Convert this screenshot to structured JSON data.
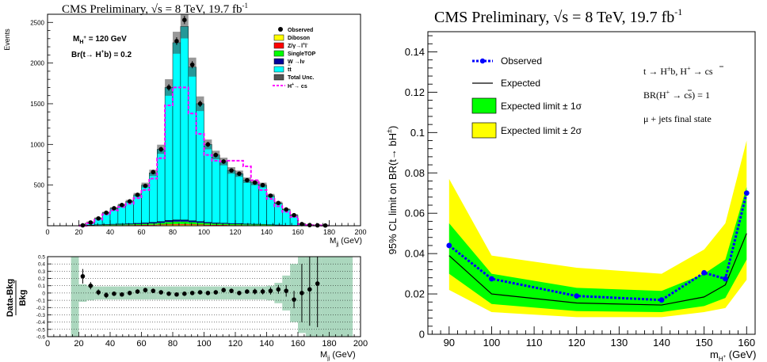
{
  "chart_data": [
    {
      "type": "bar",
      "subtype": "stacked-histogram",
      "title": "CMS Preliminary,   √s = 8 TeV,   19.7 fb",
      "title_sup": "-1",
      "xlabel": "M",
      "xlabel_sub": "jj",
      "xlabel_unit": " (GeV)",
      "ylabel": "Events",
      "xlim": [
        0,
        200
      ],
      "ylim": [
        0,
        2600
      ],
      "xticks": [
        0,
        20,
        40,
        60,
        80,
        100,
        120,
        140,
        160,
        180,
        200
      ],
      "yticks": [
        500,
        1000,
        1500,
        2000,
        2500
      ],
      "annotation_mass": "M",
      "annotation_mass_sub": "H",
      "annotation_mass_sup": "+",
      "annotation_mass_value": " = 120 GeV",
      "annotation_br": "Br(t→ H",
      "annotation_br_sup": "+",
      "annotation_br_value": "b) = 0.2",
      "bin_edges": [
        20,
        25,
        30,
        35,
        40,
        45,
        50,
        55,
        60,
        65,
        70,
        75,
        80,
        85,
        90,
        95,
        100,
        105,
        110,
        115,
        120,
        125,
        130,
        135,
        140,
        145,
        150,
        155,
        160,
        165,
        170,
        175,
        180
      ],
      "series": [
        {
          "name": "Observed",
          "values": [
            5,
            40,
            90,
            160,
            215,
            255,
            300,
            380,
            490,
            660,
            940,
            1700,
            2270,
            2530,
            1980,
            1500,
            1000,
            870,
            790,
            680,
            640,
            560,
            530,
            500,
            370,
            280,
            200,
            130,
            20,
            8,
            5,
            3
          ]
        },
        {
          "name": "Diboson",
          "values": [
            1,
            2,
            2,
            3,
            3,
            3,
            4,
            4,
            5,
            6,
            8,
            10,
            12,
            12,
            10,
            8,
            6,
            5,
            5,
            4,
            4,
            3,
            3,
            3,
            2,
            2,
            1,
            1,
            0,
            0,
            0,
            0
          ]
        },
        {
          "name": "Z/γ→l⁺l⁻",
          "values": [
            1,
            2,
            2,
            3,
            3,
            4,
            4,
            5,
            5,
            6,
            7,
            8,
            9,
            9,
            8,
            7,
            6,
            5,
            5,
            4,
            4,
            3,
            3,
            3,
            2,
            2,
            1,
            1,
            0,
            0,
            0,
            0
          ]
        },
        {
          "name": "SingleTOP",
          "values": [
            1,
            2,
            4,
            6,
            7,
            8,
            9,
            11,
            13,
            16,
            20,
            28,
            30,
            30,
            26,
            22,
            18,
            15,
            13,
            12,
            11,
            10,
            9,
            8,
            6,
            4,
            3,
            2,
            1,
            0,
            0,
            0
          ]
        },
        {
          "name": "W →lν",
          "values": [
            1,
            2,
            4,
            5,
            6,
            7,
            8,
            10,
            12,
            14,
            17,
            20,
            21,
            20,
            18,
            15,
            12,
            10,
            9,
            8,
            7,
            6,
            5,
            4,
            3,
            2,
            1,
            1,
            0,
            0,
            0,
            0
          ]
        },
        {
          "name": "tt̄",
          "values": [
            2,
            32,
            78,
            143,
            196,
            233,
            275,
            350,
            465,
            608,
            888,
            1634,
            2178,
            2379,
            1888,
            1448,
            958,
            835,
            758,
            652,
            614,
            538,
            510,
            482,
            357,
            270,
            194,
            125,
            19,
            8,
            5,
            3
          ]
        },
        {
          "name": "H⁺→ cs̄",
          "values": [
            0,
            30,
            75,
            140,
            190,
            230,
            270,
            340,
            440,
            580,
            830,
            1480,
            1700,
            1700,
            1380,
            1130,
            870,
            800,
            790,
            800,
            800,
            730,
            560,
            440,
            330,
            240,
            170,
            110,
            20,
            8,
            5,
            3
          ]
        }
      ],
      "legend": [
        "Observed",
        "Diboson",
        "Z/γ→l",
        "SingleTOP",
        "W →lν",
        "tt",
        "Total Unc.",
        "H",
        "→ cs"
      ],
      "legend_parts": {
        "z_sup1": "+",
        "z_mid": "l",
        "z_sup2": "-",
        "tt_bar": "−",
        "h_sup": "+"
      },
      "colors": {
        "diboson": "#ffff00",
        "zjets": "#ff0000",
        "singletop": "#00ff00",
        "wjets": "#000099",
        "ttbar": "#00ffff",
        "signal": "#ff00ff",
        "unc": "#555555"
      }
    },
    {
      "type": "scatter",
      "subtype": "residual",
      "ylabel_num": "Data-Bkg",
      "ylabel_den": "Bkg",
      "xlabel": "M",
      "xlabel_sub": "jj",
      "xlabel_unit": " (GeV)",
      "xlim": [
        0,
        200
      ],
      "ylim": [
        -0.6,
        0.5
      ],
      "xticks": [
        0,
        20,
        40,
        60,
        80,
        100,
        120,
        140,
        160,
        180,
        200
      ],
      "yticks": [
        -0.6,
        -0.5,
        -0.4,
        -0.3,
        -0.2,
        -0.1,
        0,
        0.1,
        0.2,
        0.3,
        0.4,
        0.5
      ],
      "x": [
        22.5,
        27.5,
        32.5,
        37.5,
        42.5,
        47.5,
        52.5,
        57.5,
        62.5,
        67.5,
        72.5,
        77.5,
        82.5,
        87.5,
        92.5,
        97.5,
        102.5,
        107.5,
        112.5,
        117.5,
        122.5,
        127.5,
        132.5,
        137.5,
        142.5,
        147.5,
        152.5,
        157.5,
        162.5,
        167.5,
        172.5
      ],
      "y": [
        0.23,
        0.1,
        0.01,
        -0.03,
        -0.01,
        -0.02,
        0.0,
        0.02,
        0.04,
        0.03,
        0.01,
        -0.01,
        -0.02,
        -0.01,
        0.0,
        0.01,
        0.0,
        0.01,
        0.04,
        0.03,
        0.0,
        0.02,
        0.02,
        0.02,
        0.03,
        0.05,
        0.03,
        -0.09,
        0.0,
        0.05,
        0.13
      ],
      "yerr": [
        0.1,
        0.05,
        0.04,
        0.04,
        0.03,
        0.03,
        0.03,
        0.03,
        0.03,
        0.03,
        0.03,
        0.02,
        0.02,
        0.02,
        0.02,
        0.02,
        0.03,
        0.03,
        0.03,
        0.03,
        0.03,
        0.03,
        0.04,
        0.04,
        0.05,
        0.06,
        0.08,
        0.12,
        0.4,
        0.5,
        0.6
      ],
      "band": [
        0.6,
        0.12,
        0.1,
        0.09,
        0.09,
        0.09,
        0.09,
        0.09,
        0.09,
        0.09,
        0.09,
        0.09,
        0.09,
        0.09,
        0.09,
        0.09,
        0.09,
        0.09,
        0.09,
        0.09,
        0.09,
        0.09,
        0.09,
        0.09,
        0.09,
        0.1,
        0.14,
        0.24,
        0.4,
        0.55,
        0.6,
        0.6,
        0.6,
        0.6
      ],
      "band_edges": [
        15,
        20,
        25,
        30,
        35,
        40,
        45,
        50,
        55,
        60,
        65,
        70,
        75,
        80,
        85,
        90,
        95,
        100,
        105,
        110,
        115,
        120,
        125,
        130,
        135,
        140,
        145,
        150,
        155,
        160,
        165,
        170,
        175,
        180,
        195
      ]
    },
    {
      "type": "line",
      "title": "CMS Preliminary, √s = 8 TeV,  19.7 fb",
      "title_sup": "-1",
      "ylabel": "95% CL limit on BR(t→ bH",
      "ylabel_sup": "±",
      "ylabel_end": ")",
      "xlabel": "m",
      "xlabel_sub": "H",
      "xlabel_subsup": "+",
      "xlabel_unit": " (GeV)",
      "xlim": [
        85,
        162
      ],
      "ylim": [
        0,
        0.15
      ],
      "xticks": [
        90,
        100,
        110,
        120,
        130,
        140,
        150,
        160
      ],
      "yticks": [
        0,
        0.02,
        0.04,
        0.06,
        0.08,
        0.1,
        0.12,
        0.14
      ],
      "ytick_labels": [
        "0",
        "0.02",
        "0.04",
        "0.06",
        "0.08",
        "0.1",
        "0.12",
        "0.14"
      ],
      "x": [
        90,
        100,
        120,
        140,
        150,
        155,
        160
      ],
      "series": [
        {
          "name": "Observed",
          "values": [
            0.044,
            0.0275,
            0.019,
            0.017,
            0.0305,
            0.0275,
            0.07
          ]
        },
        {
          "name": "Expected",
          "values": [
            0.039,
            0.02,
            0.0155,
            0.0145,
            0.0185,
            0.0245,
            0.05
          ]
        },
        {
          "name": "Expected limit ± 1σ",
          "lower": [
            0.03,
            0.015,
            0.0115,
            0.011,
            0.014,
            0.018,
            0.037
          ],
          "upper": [
            0.055,
            0.03,
            0.023,
            0.0215,
            0.03,
            0.037,
            0.073
          ]
        },
        {
          "name": "Expected limit ± 2σ",
          "lower": [
            0.022,
            0.011,
            0.0085,
            0.0085,
            0.011,
            0.013,
            0.027
          ],
          "upper": [
            0.077,
            0.039,
            0.033,
            0.03,
            0.042,
            0.055,
            0.096
          ]
        }
      ],
      "legend": [
        "Observed",
        "Expected",
        "Expected limit ± 1σ",
        "Expected limit ± 2σ"
      ],
      "annotation_decay": "t → H",
      "annotation_decay_sup": "±",
      "annotation_decay_mid": "b, H",
      "annotation_decay_sup2": "+",
      "annotation_decay_end": " → cs",
      "annotation_br": "BR(H",
      "annotation_br_sup": "+",
      "annotation_br_end": " → cs) = 1",
      "annotation_state": "μ + jets final state",
      "colors": {
        "observed": "#0000ff",
        "expected": "#000000",
        "band1": "#00ff00",
        "band2": "#ffff00"
      }
    }
  ]
}
